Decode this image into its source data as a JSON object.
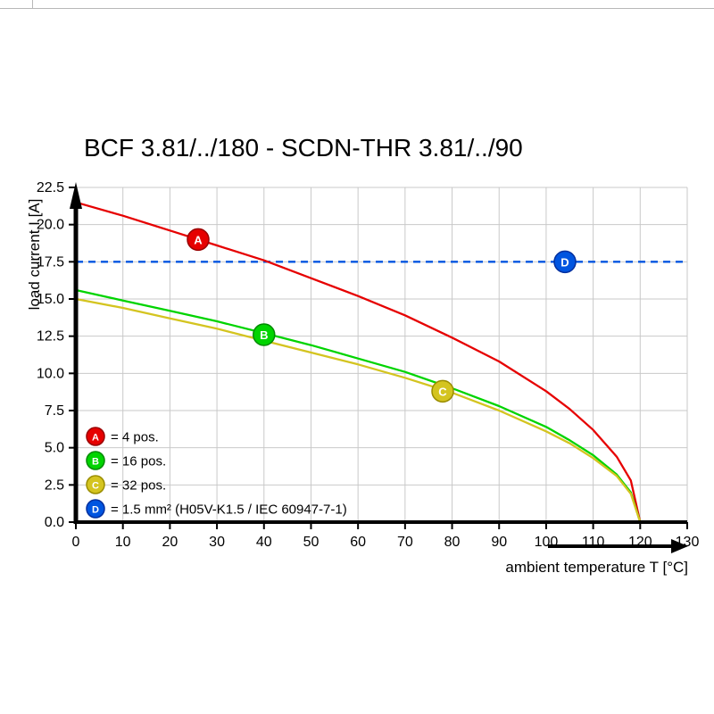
{
  "page": {
    "title": "BCF 3.81/../180 - SCDN-THR 3.81/../90"
  },
  "chart_data": {
    "type": "line",
    "title": "BCF 3.81/../180 - SCDN-THR 3.81/../90",
    "xlabel": "ambient temperature T [°C]",
    "ylabel": "load current I [A]",
    "xlim": [
      0,
      130
    ],
    "ylim": [
      0,
      22.5
    ],
    "xticks": [
      0,
      10,
      20,
      30,
      40,
      50,
      60,
      70,
      80,
      90,
      100,
      110,
      120,
      130
    ],
    "yticks": [
      0,
      2.5,
      5,
      7.5,
      10,
      12.5,
      15,
      17.5,
      20,
      22.5
    ],
    "grid": true,
    "legend_position": "bottom-left",
    "colors": {
      "grid": "#c9c9c9",
      "axis": "#000000",
      "background": "#ffffff"
    },
    "series": [
      {
        "name": "A",
        "label": "= 4 pos.",
        "color": "#e60000",
        "edge": "#990000",
        "dashed": false,
        "x": [
          0,
          10,
          20,
          30,
          40,
          50,
          60,
          70,
          80,
          90,
          100,
          105,
          110,
          115,
          118,
          120
        ],
        "y": [
          21.5,
          20.6,
          19.6,
          18.6,
          17.6,
          16.4,
          15.2,
          13.9,
          12.4,
          10.8,
          8.8,
          7.6,
          6.2,
          4.4,
          2.8,
          0
        ],
        "marker": {
          "x": 26,
          "y": 19.0
        }
      },
      {
        "name": "B",
        "label": "= 16 pos.",
        "color": "#00d400",
        "edge": "#008a00",
        "dashed": false,
        "x": [
          0,
          10,
          20,
          30,
          40,
          50,
          60,
          70,
          80,
          90,
          100,
          105,
          110,
          115,
          118,
          120
        ],
        "y": [
          15.6,
          14.9,
          14.2,
          13.5,
          12.7,
          11.9,
          11.0,
          10.1,
          9.0,
          7.8,
          6.4,
          5.5,
          4.5,
          3.2,
          2.0,
          0
        ],
        "marker": {
          "x": 40,
          "y": 12.6
        }
      },
      {
        "name": "C",
        "label": "= 32 pos.",
        "color": "#d4c420",
        "edge": "#9a8d00",
        "dashed": false,
        "x": [
          0,
          10,
          20,
          30,
          40,
          50,
          60,
          70,
          80,
          90,
          100,
          105,
          110,
          115,
          118,
          120
        ],
        "y": [
          15.0,
          14.4,
          13.7,
          13.0,
          12.2,
          11.4,
          10.6,
          9.7,
          8.7,
          7.5,
          6.1,
          5.3,
          4.3,
          3.1,
          1.9,
          0
        ],
        "marker": {
          "x": 78,
          "y": 8.8
        }
      },
      {
        "name": "D",
        "label": "= 1.5 mm² (H05V-K1.5 / IEC 60947-7-1)",
        "color": "#0055e0",
        "edge": "#002f9e",
        "dashed": true,
        "x": [
          0,
          130
        ],
        "y": [
          17.5,
          17.5
        ],
        "marker": {
          "x": 104,
          "y": 17.5
        }
      }
    ]
  }
}
